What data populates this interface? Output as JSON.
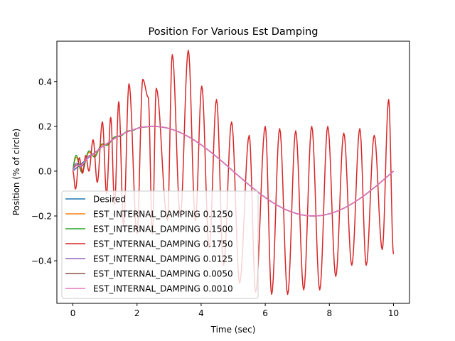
{
  "chart_data": {
    "type": "line",
    "title": "Position For Various Est Damping",
    "xlabel": "Time (sec)",
    "ylabel": "Position (% of circle)",
    "xlim": [
      -0.5,
      10.5
    ],
    "ylim": [
      -0.59,
      0.58
    ],
    "xticks": [
      0,
      2,
      4,
      6,
      8,
      10
    ],
    "xtick_labels": [
      "0",
      "2",
      "4",
      "6",
      "8",
      "10"
    ],
    "yticks": [
      -0.4,
      -0.2,
      0.0,
      0.2,
      0.4
    ],
    "ytick_labels": [
      "−0.4",
      "−0.2",
      "0.0",
      "0.2",
      "0.4"
    ],
    "grid": false,
    "legend_position": "lower-left",
    "desired_curve": {
      "amplitude": 0.2,
      "period": 10
    },
    "series": [
      {
        "name": "Desired",
        "color": "#1f77b4",
        "x": [
          0,
          1,
          2,
          2.5,
          3,
          4,
          5,
          6,
          7,
          7.5,
          8,
          9,
          10
        ],
        "y": [
          0,
          0.118,
          0.19,
          0.2,
          0.19,
          0.118,
          0,
          -0.118,
          -0.19,
          -0.2,
          -0.19,
          -0.118,
          0
        ]
      },
      {
        "name": "EST_INTERNAL_DAMPING 0.1250",
        "color": "#ff7f0e",
        "tracks": "Desired",
        "transient": {
          "amplitude": 0.06,
          "frequency_hz": 2.5,
          "decay": 2.0
        }
      },
      {
        "name": "EST_INTERNAL_DAMPING 0.1500",
        "color": "#2ca02c",
        "tracks": "Desired",
        "transient": {
          "amplitude": 0.07,
          "frequency_hz": 2.5,
          "decay": 1.8
        }
      },
      {
        "name": "EST_INTERNAL_DAMPING 0.1750",
        "color": "#d62728",
        "tracks": "Desired",
        "oscillation": {
          "frequency_hz": 2.0,
          "peak_times": [
            0.2,
            0.4,
            0.63,
            0.92,
            1.18,
            1.43,
            1.75,
            2.18,
            2.35,
            2.6,
            3.1,
            3.6,
            4.02,
            4.48,
            4.95,
            5.5,
            6.0,
            6.45,
            6.95,
            7.45,
            7.95,
            8.45,
            8.95,
            9.4,
            9.85
          ],
          "peak_values": [
            0.06,
            0.07,
            0.14,
            0.22,
            0.24,
            0.31,
            0.39,
            0.41,
            0.33,
            0.37,
            0.52,
            0.54,
            0.38,
            0.32,
            0.22,
            0.16,
            0.2,
            0.19,
            0.18,
            0.2,
            0.2,
            0.17,
            0.19,
            0.16,
            0.32
          ],
          "trough_times": [
            0.08,
            0.3,
            0.5,
            0.76,
            1.05,
            1.3,
            1.58,
            2.0,
            2.48,
            2.95,
            3.35,
            3.82,
            4.25,
            4.7,
            5.2,
            5.7,
            6.2,
            6.7,
            7.2,
            7.7,
            8.2,
            8.7,
            9.15,
            9.65,
            10.0
          ],
          "trough_values": [
            -0.08,
            -0.01,
            0.0,
            -0.05,
            -0.1,
            -0.15,
            -0.24,
            -0.28,
            -0.28,
            -0.22,
            -0.2,
            -0.22,
            -0.34,
            -0.42,
            -0.5,
            -0.54,
            -0.55,
            -0.55,
            -0.53,
            -0.53,
            -0.47,
            -0.42,
            -0.42,
            -0.35,
            -0.37
          ]
        }
      },
      {
        "name": "EST_INTERNAL_DAMPING 0.0125",
        "color": "#9467bd",
        "tracks": "Desired",
        "transient": {
          "amplitude": 0.03,
          "frequency_hz": 2.5,
          "decay": 3.0
        }
      },
      {
        "name": "EST_INTERNAL_DAMPING 0.0050",
        "color": "#8c564b",
        "tracks": "Desired",
        "transient": {
          "amplitude": 0.02,
          "frequency_hz": 2.5,
          "decay": 3.0
        }
      },
      {
        "name": "EST_INTERNAL_DAMPING 0.0010",
        "color": "#e377c2",
        "tracks": "Desired",
        "transient": {
          "amplitude": 0.015,
          "frequency_hz": 2.5,
          "decay": 3.0
        }
      }
    ]
  }
}
